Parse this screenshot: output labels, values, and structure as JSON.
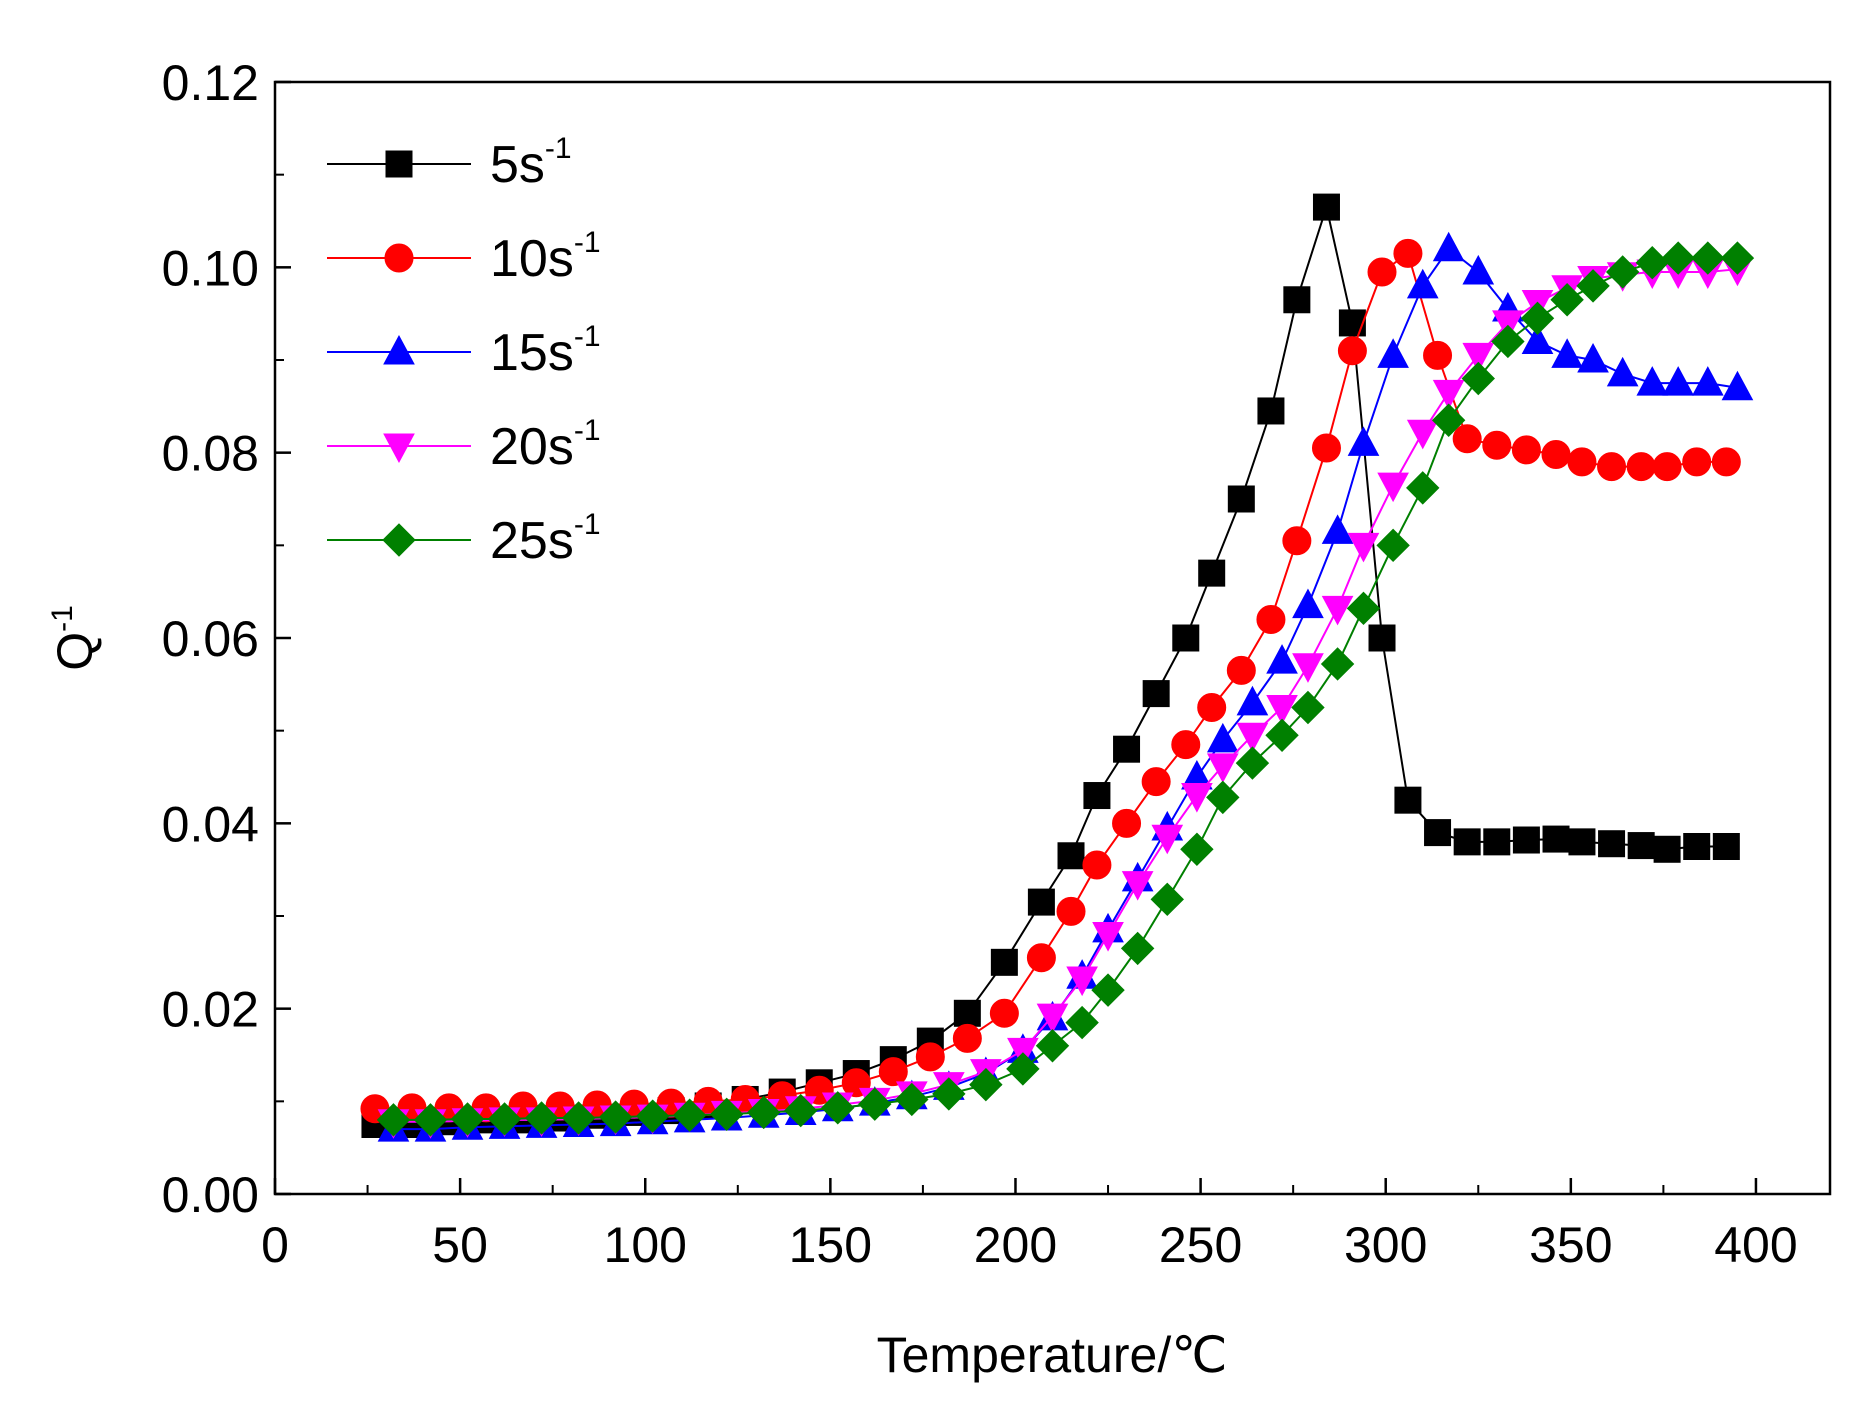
{
  "chart_data": {
    "type": "line",
    "xlabel": "Temperature/℃",
    "ylabel": "Q",
    "ylabel_superscript": "-1",
    "xlim": [
      0,
      420
    ],
    "ylim": [
      0,
      0.12
    ],
    "xticks": [
      0,
      50,
      100,
      150,
      200,
      250,
      300,
      350,
      400
    ],
    "xtick_labels": [
      "0",
      "50",
      "100",
      "150",
      "200",
      "250",
      "300",
      "350",
      "400"
    ],
    "yticks": [
      0,
      0.02,
      0.04,
      0.06,
      0.08,
      0.1,
      0.12
    ],
    "ytick_labels": [
      "0.00",
      "0.02",
      "0.04",
      "0.06",
      "0.08",
      "0.10",
      "0.12"
    ],
    "legend_position": "top-left",
    "grid": false,
    "series": [
      {
        "name": "5s",
        "name_superscript": "-1",
        "color": "#000000",
        "marker": "square",
        "x": [
          27,
          37,
          47,
          57,
          67,
          77,
          87,
          97,
          107,
          117,
          127,
          137,
          147,
          157,
          167,
          177,
          187,
          197,
          207,
          215,
          222,
          230,
          238,
          246,
          253,
          261,
          269,
          276,
          284,
          291,
          299,
          306,
          314,
          322,
          330,
          338,
          346,
          353,
          361,
          369,
          376,
          384,
          392
        ],
        "y": [
          0.0075,
          0.0075,
          0.0078,
          0.008,
          0.008,
          0.0082,
          0.0085,
          0.0088,
          0.009,
          0.0095,
          0.0102,
          0.011,
          0.012,
          0.013,
          0.0145,
          0.0165,
          0.0195,
          0.025,
          0.0315,
          0.0365,
          0.043,
          0.048,
          0.054,
          0.06,
          0.067,
          0.075,
          0.0845,
          0.0965,
          0.1065,
          0.094,
          0.06,
          0.0425,
          0.039,
          0.038,
          0.038,
          0.0382,
          0.0383,
          0.038,
          0.0378,
          0.0376,
          0.0372,
          0.0375,
          0.0375
        ]
      },
      {
        "name": "10s",
        "name_superscript": "-1",
        "color": "#ff0000",
        "marker": "circle",
        "x": [
          27,
          37,
          47,
          57,
          67,
          77,
          87,
          97,
          107,
          117,
          127,
          137,
          147,
          157,
          167,
          177,
          187,
          197,
          207,
          215,
          222,
          230,
          238,
          246,
          253,
          261,
          269,
          276,
          284,
          291,
          299,
          306,
          314,
          322,
          330,
          338,
          346,
          353,
          361,
          369,
          376,
          384,
          392
        ],
        "y": [
          0.0092,
          0.0093,
          0.0093,
          0.0093,
          0.0095,
          0.0095,
          0.0096,
          0.0097,
          0.0098,
          0.01,
          0.0102,
          0.0106,
          0.0112,
          0.012,
          0.0132,
          0.0148,
          0.0168,
          0.0195,
          0.0255,
          0.0305,
          0.0355,
          0.04,
          0.0445,
          0.0485,
          0.0525,
          0.0565,
          0.062,
          0.0705,
          0.0805,
          0.091,
          0.0995,
          0.1015,
          0.0905,
          0.0815,
          0.0808,
          0.0803,
          0.0798,
          0.079,
          0.0785,
          0.0785,
          0.0785,
          0.079,
          0.079
        ]
      },
      {
        "name": "15s",
        "name_superscript": "-1",
        "color": "#0000ff",
        "marker": "triangle-up",
        "x": [
          32,
          42,
          52,
          62,
          72,
          82,
          92,
          102,
          112,
          122,
          132,
          142,
          152,
          162,
          172,
          182,
          192,
          202,
          210,
          218,
          225,
          233,
          241,
          249,
          256,
          264,
          272,
          279,
          287,
          294,
          302,
          310,
          317,
          325,
          333,
          341,
          349,
          356,
          364,
          372,
          379,
          387,
          395
        ],
        "y": [
          0.007,
          0.007,
          0.0072,
          0.0073,
          0.0074,
          0.0075,
          0.0076,
          0.0078,
          0.008,
          0.0082,
          0.0085,
          0.0088,
          0.0092,
          0.0098,
          0.0105,
          0.0115,
          0.013,
          0.0155,
          0.019,
          0.0235,
          0.0285,
          0.034,
          0.0395,
          0.045,
          0.049,
          0.053,
          0.0575,
          0.0635,
          0.0715,
          0.081,
          0.0905,
          0.098,
          0.102,
          0.0995,
          0.0955,
          0.092,
          0.0905,
          0.09,
          0.0885,
          0.0875,
          0.0875,
          0.0875,
          0.087
        ]
      },
      {
        "name": "20s",
        "name_superscript": "-1",
        "color": "#ff00ff",
        "marker": "triangle-down",
        "x": [
          32,
          42,
          52,
          62,
          72,
          82,
          92,
          102,
          112,
          122,
          132,
          142,
          152,
          162,
          172,
          182,
          192,
          202,
          210,
          218,
          225,
          233,
          241,
          249,
          256,
          264,
          272,
          279,
          287,
          294,
          302,
          310,
          317,
          325,
          333,
          341,
          349,
          356,
          364,
          372,
          379,
          387,
          395
        ],
        "y": [
          0.0078,
          0.0078,
          0.0079,
          0.008,
          0.008,
          0.0081,
          0.0082,
          0.0083,
          0.0085,
          0.0087,
          0.0089,
          0.0092,
          0.0096,
          0.0101,
          0.0108,
          0.0118,
          0.0132,
          0.0155,
          0.0192,
          0.0232,
          0.028,
          0.0335,
          0.0385,
          0.043,
          0.0462,
          0.0495,
          0.0525,
          0.057,
          0.0632,
          0.07,
          0.0765,
          0.0822,
          0.0865,
          0.0905,
          0.094,
          0.0962,
          0.0978,
          0.0988,
          0.0992,
          0.0995,
          0.0995,
          0.0995,
          0.0998
        ]
      },
      {
        "name": "25s",
        "name_superscript": "-1",
        "color": "#008000",
        "marker": "diamond",
        "x": [
          32,
          42,
          52,
          62,
          72,
          82,
          92,
          102,
          112,
          122,
          132,
          142,
          152,
          162,
          172,
          182,
          192,
          202,
          210,
          218,
          225,
          233,
          241,
          249,
          256,
          264,
          272,
          279,
          287,
          294,
          302,
          310,
          317,
          325,
          333,
          341,
          349,
          356,
          364,
          372,
          379,
          387,
          395
        ],
        "y": [
          0.008,
          0.008,
          0.0081,
          0.0081,
          0.0082,
          0.0082,
          0.0083,
          0.0084,
          0.0085,
          0.0086,
          0.0088,
          0.009,
          0.0093,
          0.0097,
          0.0102,
          0.0108,
          0.0118,
          0.0135,
          0.016,
          0.0185,
          0.022,
          0.0265,
          0.0318,
          0.0372,
          0.0428,
          0.0465,
          0.0495,
          0.0525,
          0.0572,
          0.0632,
          0.07,
          0.0762,
          0.0835,
          0.088,
          0.092,
          0.0945,
          0.0965,
          0.098,
          0.0995,
          0.1005,
          0.101,
          0.101,
          0.101
        ]
      }
    ]
  }
}
